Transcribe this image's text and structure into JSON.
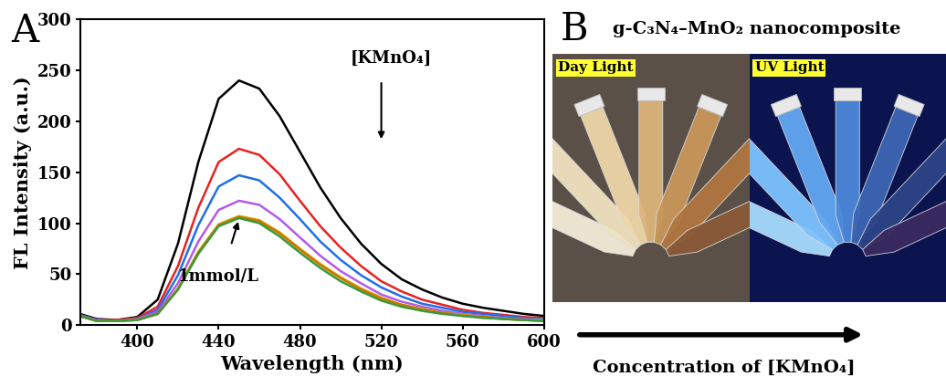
{
  "chart_data": {
    "type": "line",
    "panel_label": "A",
    "x_label": "Wavelength (nm)",
    "y_label": "FL Intensity (a.u.)",
    "x": [
      370,
      380,
      390,
      400,
      410,
      420,
      430,
      440,
      450,
      460,
      470,
      480,
      490,
      500,
      510,
      520,
      530,
      540,
      550,
      560,
      570,
      580,
      590,
      600
    ],
    "series": [
      {
        "color": "#000000",
        "values": [
          12,
          6,
          5,
          8,
          25,
          80,
          160,
          222,
          240,
          232,
          205,
          170,
          135,
          105,
          80,
          60,
          45,
          35,
          27,
          21,
          17,
          14,
          11,
          9
        ]
      },
      {
        "color": "#e8221f",
        "values": [
          11,
          5,
          5,
          7,
          18,
          58,
          115,
          160,
          173,
          167,
          148,
          122,
          97,
          76,
          58,
          43,
          33,
          25,
          20,
          15,
          12,
          10,
          8,
          7
        ]
      },
      {
        "color": "#1f6fe8",
        "values": [
          11,
          5,
          4,
          6,
          15,
          49,
          98,
          136,
          147,
          142,
          125,
          104,
          82,
          64,
          49,
          37,
          28,
          21,
          17,
          13,
          11,
          9,
          7,
          6
        ]
      },
      {
        "color": "#b45ae8",
        "values": [
          10,
          5,
          4,
          6,
          13,
          41,
          82,
          113,
          122,
          118,
          104,
          86,
          68,
          53,
          41,
          30,
          23,
          18,
          14,
          11,
          9,
          7,
          6,
          5
        ]
      },
      {
        "color": "#d9a400",
        "values": [
          10,
          4,
          4,
          5,
          11,
          36,
          72,
          99,
          107,
          103,
          91,
          75,
          60,
          47,
          36,
          27,
          20,
          16,
          12,
          10,
          8,
          6,
          5,
          5
        ]
      },
      {
        "color": "#c87800",
        "values": [
          10,
          4,
          4,
          5,
          11,
          35,
          71,
          98,
          106,
          102,
          90,
          74,
          59,
          46,
          35,
          26,
          20,
          15,
          12,
          9,
          8,
          6,
          5,
          4
        ]
      },
      {
        "color": "#3a9a3a",
        "values": [
          10,
          4,
          4,
          5,
          11,
          35,
          70,
          97,
          105,
          100,
          87,
          71,
          56,
          43,
          33,
          24,
          18,
          14,
          11,
          9,
          7,
          6,
          5,
          4
        ]
      }
    ],
    "xlim": [
      372,
      600
    ],
    "xticks": [
      400,
      440,
      480,
      520,
      560,
      600
    ],
    "ylim": [
      0,
      300
    ],
    "yticks": [
      0,
      50,
      100,
      150,
      200,
      250,
      300
    ],
    "annotations": [
      {
        "text": "[KMnO₄]"
      },
      {
        "text": "1mmol/L"
      }
    ]
  },
  "photo_panel": {
    "panel_label": "B",
    "title": "g-C₃N₄–MnO₂ nanocomposite",
    "left_label": "Day Light",
    "right_label": "UV Light",
    "arrow_label": "Concentration of [KMnO₄]"
  }
}
